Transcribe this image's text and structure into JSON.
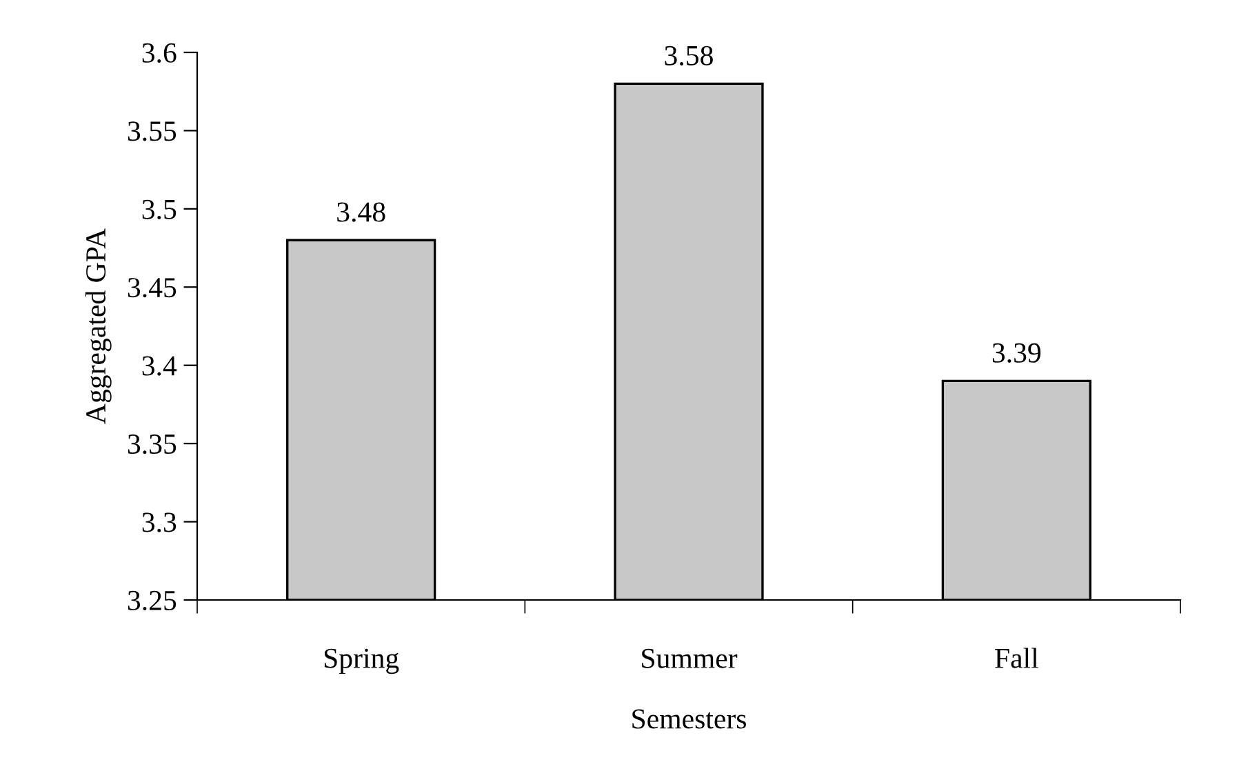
{
  "chart_data": {
    "type": "bar",
    "xlabel": "Semesters",
    "ylabel": "Aggregated GPA",
    "categories": [
      "Spring",
      "Summer",
      "Fall"
    ],
    "values": [
      3.48,
      3.58,
      3.39
    ],
    "color": "#c8c8c8",
    "ylim": [
      3.25,
      3.6
    ],
    "yticks": [
      3.25,
      3.3,
      3.35,
      3.4,
      3.45,
      3.5,
      3.55,
      3.6
    ],
    "data_labels": true,
    "grid": false
  }
}
